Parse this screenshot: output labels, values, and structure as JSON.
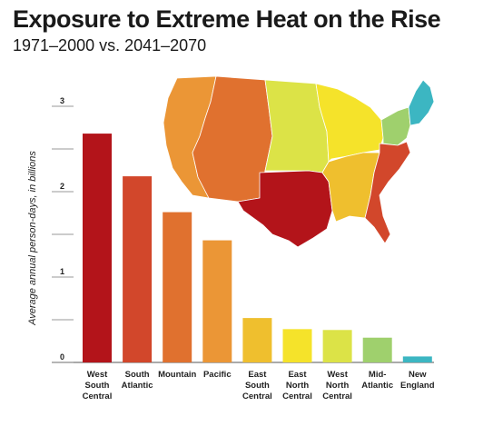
{
  "chart_data": {
    "type": "bar",
    "title": "Exposure to Extreme Heat on the Rise",
    "subtitle": "1971–2000 vs. 2041–2070",
    "ylabel": "Average annual person-days, in billions",
    "xlabel": "",
    "ylim": [
      0,
      3
    ],
    "yticks": [
      0,
      1,
      2,
      3
    ],
    "grid": false,
    "categories": [
      [
        "West",
        "South",
        "Central"
      ],
      [
        "South",
        "Atlantic"
      ],
      [
        "Mountain"
      ],
      [
        "Pacific"
      ],
      [
        "East",
        "South",
        "Central"
      ],
      [
        "East",
        "North",
        "Central"
      ],
      [
        "West",
        "North",
        "Central"
      ],
      [
        "Mid-",
        "Atlantic"
      ],
      [
        "New",
        "England"
      ]
    ],
    "values": [
      2.68,
      2.18,
      1.76,
      1.43,
      0.52,
      0.39,
      0.38,
      0.29,
      0.07
    ],
    "colors": [
      "#b3141a",
      "#d2472b",
      "#e0712f",
      "#eb9636",
      "#efbf2e",
      "#f5e32a",
      "#dce347",
      "#9fd06d",
      "#3cb6c2"
    ]
  },
  "map": {
    "description_icon": "us-regions-map-icon"
  }
}
